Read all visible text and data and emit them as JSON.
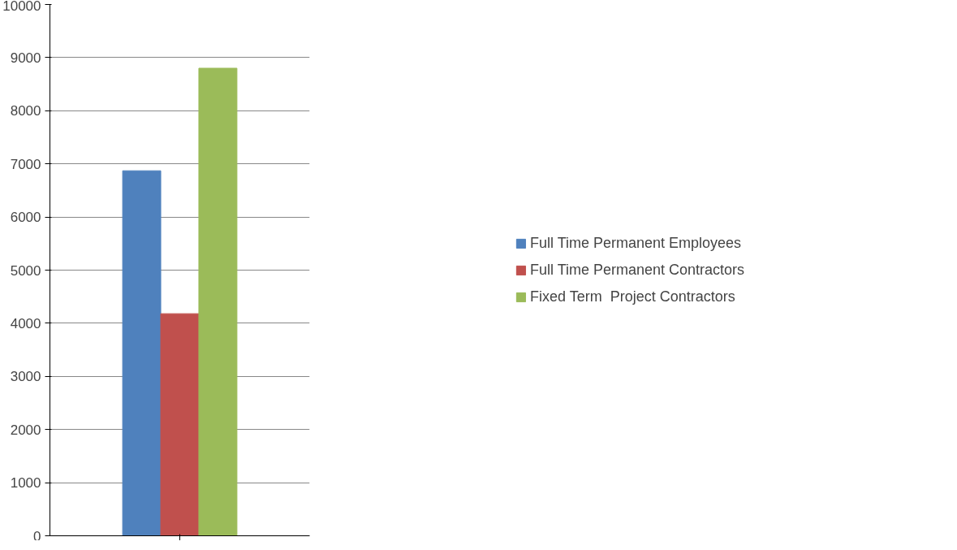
{
  "chart_data": {
    "type": "bar",
    "categories": [
      null
    ],
    "series": [
      {
        "name": "Full Time Permanent Employees",
        "color": "#4f81bd",
        "values": [
          6870
        ]
      },
      {
        "name": "Full Time Permanent Contractors",
        "color": "#c0504d",
        "values": [
          4180
        ]
      },
      {
        "name": "Fixed Term  Project Contractors",
        "color": "#9bbb59",
        "values": [
          8800
        ]
      }
    ],
    "ylim": [
      0,
      10000
    ],
    "yticks": [
      0,
      1000,
      2000,
      3000,
      4000,
      5000,
      6000,
      7000,
      8000,
      9000,
      10000
    ],
    "grid": "y",
    "legend": "right"
  }
}
